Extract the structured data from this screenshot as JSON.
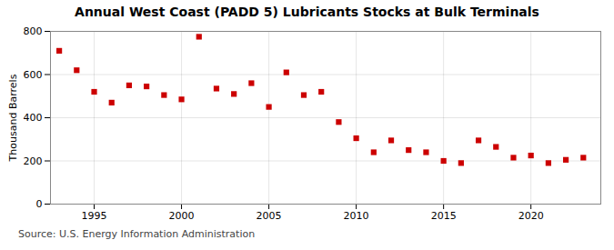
{
  "chart_data": {
    "type": "scatter",
    "title": "Annual West Coast (PADD 5) Lubricants Stocks at Bulk Terminals",
    "ylabel": "Thousand Barrels",
    "source": "Source: U.S. Energy Information Administration",
    "x": [
      1993,
      1994,
      1995,
      1996,
      1997,
      1998,
      1999,
      2000,
      2001,
      2002,
      2003,
      2004,
      2005,
      2006,
      2007,
      2008,
      2009,
      2010,
      2011,
      2012,
      2013,
      2014,
      2015,
      2016,
      2017,
      2018,
      2019,
      2020,
      2021,
      2022,
      2023
    ],
    "values": [
      710,
      620,
      520,
      470,
      550,
      545,
      505,
      485,
      775,
      535,
      510,
      560,
      450,
      610,
      505,
      520,
      380,
      305,
      240,
      295,
      250,
      240,
      200,
      190,
      295,
      265,
      215,
      225,
      190,
      205,
      215
    ],
    "color": "#cc0000",
    "marker": "square",
    "xlim": [
      1992.5,
      2024
    ],
    "ylim": [
      0,
      800
    ],
    "xticks": [
      1995,
      2000,
      2005,
      2010,
      2015,
      2020
    ],
    "yticks": [
      0,
      200,
      400,
      600,
      800
    ],
    "grid": true
  }
}
